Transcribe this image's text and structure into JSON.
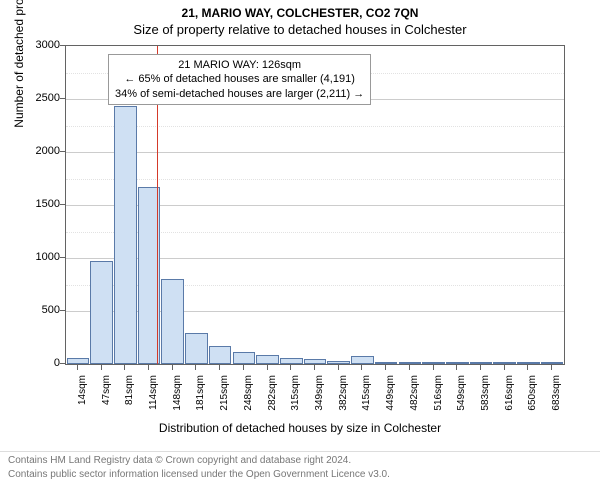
{
  "header": {
    "address": "21, MARIO WAY, COLCHESTER, CO2 7QN",
    "subtitle": "Size of property relative to detached houses in Colchester"
  },
  "chart": {
    "type": "histogram",
    "ylabel": "Number of detached properties",
    "xlabel": "Distribution of detached houses by size in Colchester",
    "background_color": "#ffffff",
    "border_color": "#636363",
    "grid_color": "#cccccc",
    "minor_grid_color": "#e2e2e2",
    "bar_fill": "#cfe0f3",
    "bar_edge": "#5a7aa8",
    "ref_line_color": "#d43a2a",
    "ylim": [
      0,
      3000
    ],
    "ytick_step": 500,
    "x_categories": [
      "14sqm",
      "47sqm",
      "81sqm",
      "114sqm",
      "148sqm",
      "181sqm",
      "215sqm",
      "248sqm",
      "282sqm",
      "315sqm",
      "349sqm",
      "382sqm",
      "415sqm",
      "449sqm",
      "482sqm",
      "516sqm",
      "549sqm",
      "583sqm",
      "616sqm",
      "650sqm",
      "683sqm"
    ],
    "bar_values": [
      60,
      970,
      2430,
      1670,
      800,
      290,
      170,
      110,
      85,
      60,
      45,
      30,
      80,
      10,
      8,
      5,
      5,
      3,
      2,
      2,
      1
    ],
    "ref_line_index": 3.35,
    "annotation": {
      "line1": "21 MARIO WAY: 126sqm",
      "line2": "← 65% of detached houses are smaller (4,191)",
      "line3": "34% of semi-detached houses are larger (2,211) →"
    },
    "label_fontsize": 12,
    "tick_fontsize": 11,
    "xtick_fontsize": 10,
    "annot_fontsize": 11
  },
  "footer": {
    "line1": "Contains HM Land Registry data © Crown copyright and database right 2024.",
    "line2": "Contains public sector information licensed under the Open Government Licence v3.0."
  }
}
